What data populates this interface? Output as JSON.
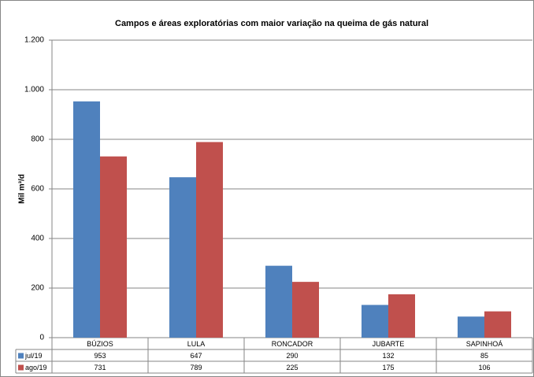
{
  "chart_data": {
    "type": "bar",
    "title": "Campos e áreas exploratórias com maior variação na queima de gás natural",
    "y_label": "Mil m³/d",
    "categories": [
      "BÚZIOS",
      "LULA",
      "RONCADOR",
      "JUBARTE",
      "SAPINHOÁ"
    ],
    "series": [
      {
        "name": "jul/19",
        "color": "#4f81bd",
        "values": [
          953,
          647,
          290,
          132,
          85
        ]
      },
      {
        "name": "ago/19",
        "color": "#c0504d",
        "values": [
          731,
          789,
          225,
          175,
          106
        ]
      }
    ],
    "ylim": [
      0,
      1200
    ],
    "yticks": [
      0,
      200,
      400,
      600,
      800,
      {
        "value": 1000,
        "label": "1.000"
      },
      {
        "value": 1200,
        "label": "1.200"
      }
    ],
    "grid": true,
    "data_table": true
  }
}
